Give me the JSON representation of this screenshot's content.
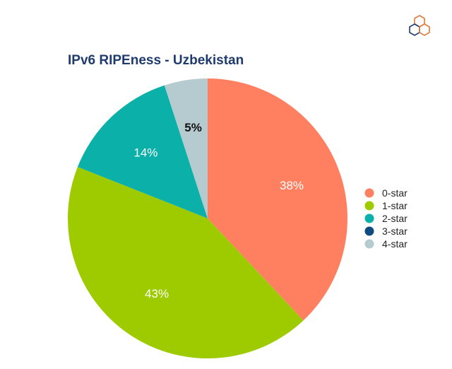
{
  "colors": {
    "title": "#1f3b6e",
    "logo_orange": "#e07b39",
    "logo_navy": "#1f3b6e"
  },
  "logo": {
    "icon": "ripe-ncc-hexagon-logo-icon"
  },
  "chart_data": {
    "type": "pie",
    "title": "IPv6 RIPEness - Uzbekistan",
    "slices": [
      {
        "name": "0-star",
        "value": 38,
        "label": "38%",
        "color": "#ff8060",
        "label_color": "#ffffff",
        "label_bold": false
      },
      {
        "name": "1-star",
        "value": 43,
        "label": "43%",
        "color": "#9dcb00",
        "label_color": "#ffffff",
        "label_bold": false
      },
      {
        "name": "2-star",
        "value": 14,
        "label": "14%",
        "color": "#0bb0a8",
        "label_color": "#ffffff",
        "label_bold": false
      },
      {
        "name": "3-star",
        "value": 0,
        "label": "",
        "color": "#0d4b80",
        "label_color": "#ffffff",
        "label_bold": false
      },
      {
        "name": "4-star",
        "value": 5,
        "label": "5%",
        "color": "#b5cbd0",
        "label_color": "#111111",
        "label_bold": true
      }
    ],
    "start_angle": "12 o'clock",
    "direction": "clockwise",
    "legend_position": "right"
  }
}
